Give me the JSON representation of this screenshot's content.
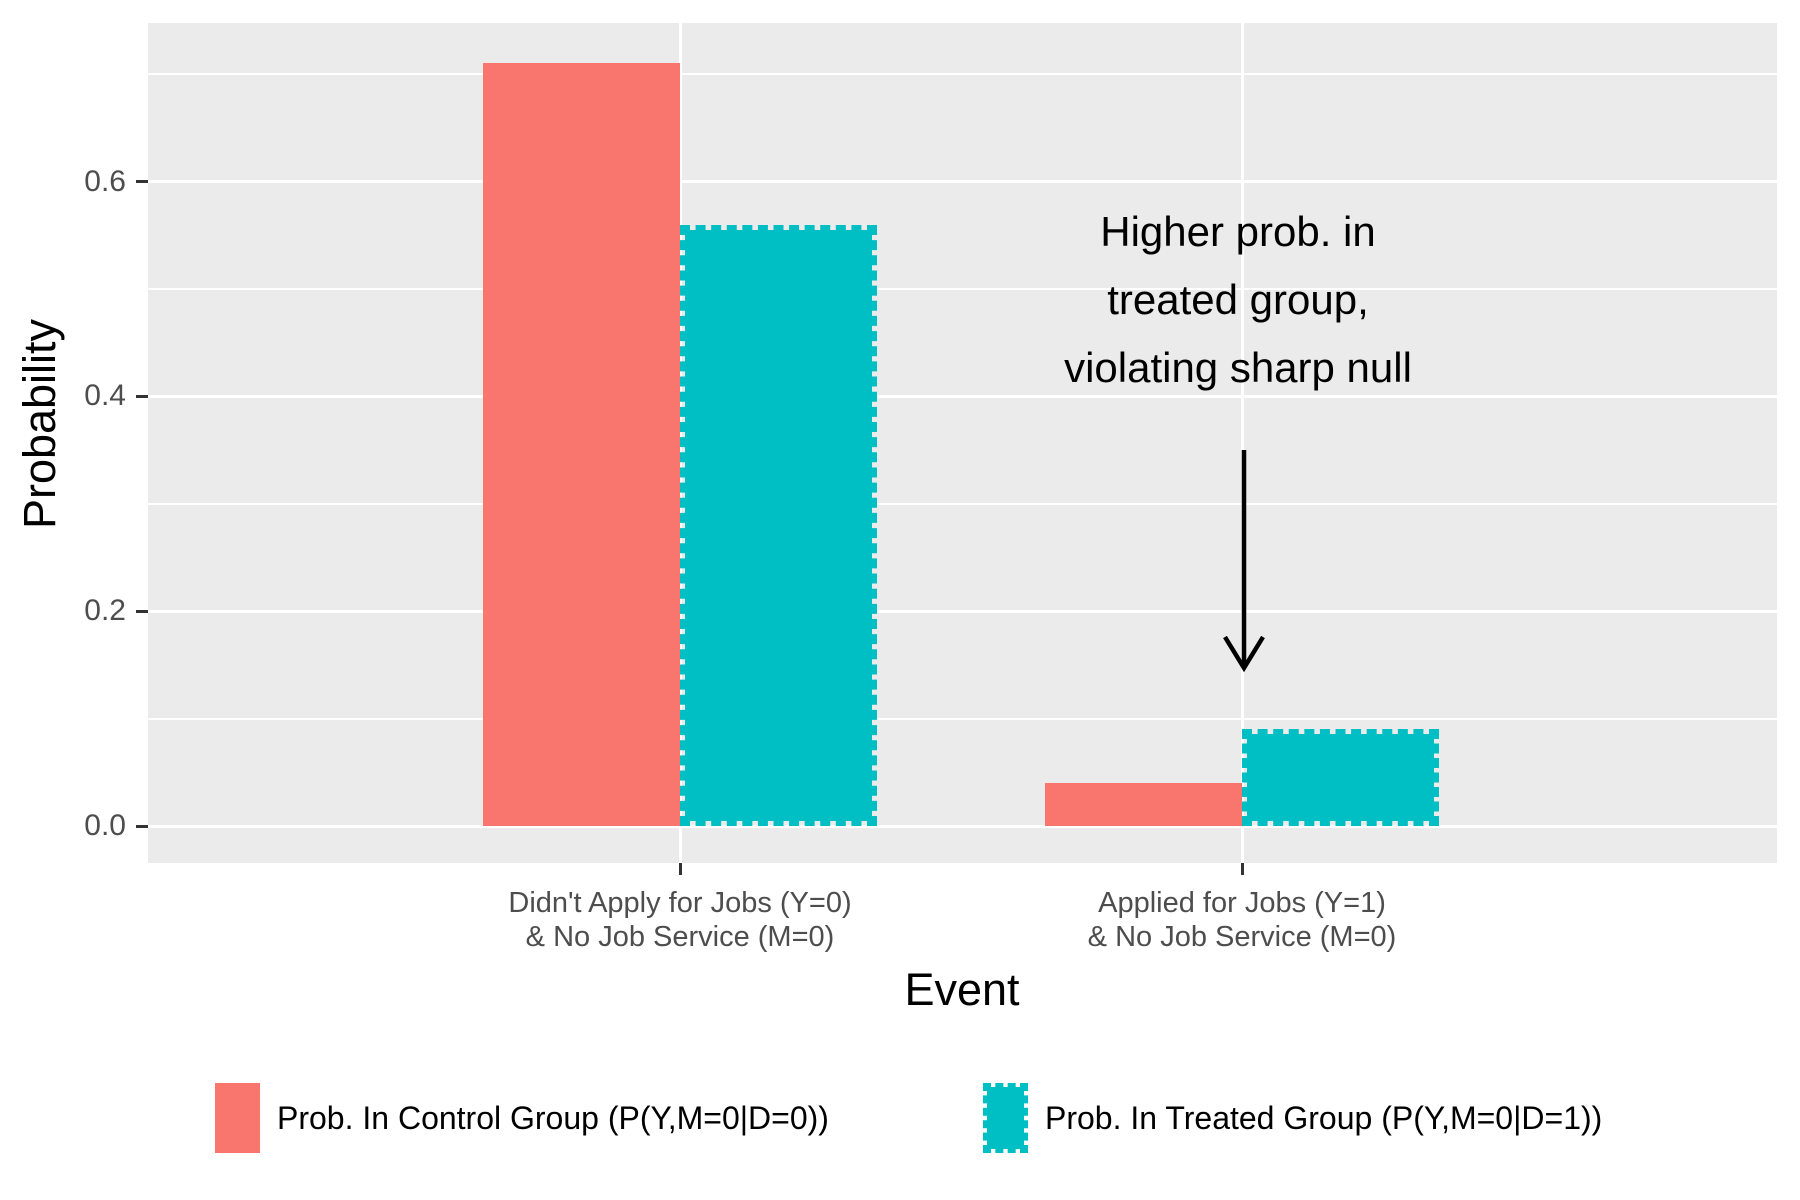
{
  "chart_data": {
    "type": "bar",
    "title": "",
    "xlabel": "Event",
    "ylabel": "Probability",
    "categories": [
      "Didn't Apply for Jobs (Y=0)\n& No Job Service (M=0)",
      "Applied for Jobs (Y=1)\n& No Job Service (M=0)"
    ],
    "series": [
      {
        "name": "Prob. In Control Group (P(Y,M=0|D=0))",
        "color": "#F8766D",
        "outline": "solid",
        "values": [
          0.71,
          0.04
        ]
      },
      {
        "name": "Prob. In Treated Group (P(Y,M=0|D=1))",
        "color": "#00BFC4",
        "outline": "dashed",
        "values": [
          0.56,
          0.09
        ]
      }
    ],
    "ylim": [
      0.0,
      0.74
    ],
    "yticks": [
      0.0,
      0.2,
      0.4,
      0.6
    ],
    "minor_gridlines": [
      0.1,
      0.3,
      0.5,
      0.7
    ],
    "grid": true,
    "legend_position": "bottom",
    "panel_background": "#EBEBEB",
    "gridline_color": "#ffffff",
    "axis_text_color": "#4D4D4D",
    "annotation": {
      "text_lines": [
        "Higher prob. in",
        "treated group,",
        "violating sharp null"
      ],
      "arrow": "down-arrow-pointing-at-treated-bar"
    }
  }
}
